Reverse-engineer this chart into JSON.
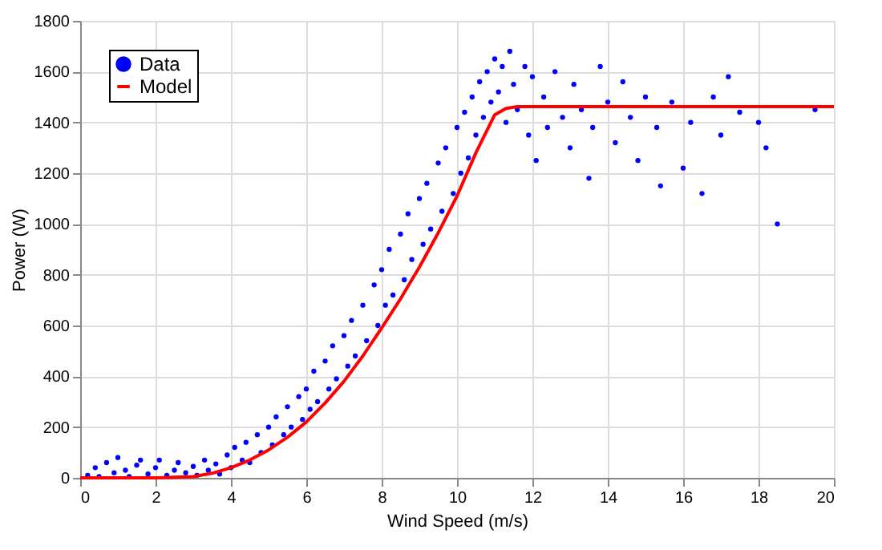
{
  "chart_data": {
    "type": "scatter",
    "xlabel": "Wind Speed (m/s)",
    "ylabel": "Power (W)",
    "xlim": [
      0,
      20
    ],
    "xticks": [
      0,
      2,
      4,
      6,
      8,
      10,
      12,
      14,
      16,
      18,
      20
    ],
    "ylim": [
      0,
      1800
    ],
    "yticks": [
      0,
      200,
      400,
      600,
      800,
      1000,
      1200,
      1400,
      1600,
      1800
    ],
    "grid": true,
    "legend": "top left",
    "series": [
      {
        "name": "Data",
        "marker": "circle",
        "color": "#0000ff",
        "x": [
          0.2,
          0.4,
          0.5,
          0.7,
          0.9,
          1.0,
          1.2,
          1.3,
          1.5,
          1.6,
          1.8,
          2.0,
          2.1,
          2.3,
          2.5,
          2.6,
          2.8,
          3.0,
          3.1,
          3.3,
          3.4,
          3.6,
          3.7,
          3.9,
          4.0,
          4.1,
          4.3,
          4.4,
          4.5,
          4.7,
          4.8,
          5.0,
          5.1,
          5.2,
          5.4,
          5.5,
          5.6,
          5.8,
          5.9,
          6.0,
          6.1,
          6.2,
          6.3,
          6.5,
          6.6,
          6.7,
          6.8,
          7.0,
          7.1,
          7.2,
          7.3,
          7.5,
          7.6,
          7.8,
          7.9,
          8.0,
          8.1,
          8.2,
          8.3,
          8.5,
          8.6,
          8.7,
          8.8,
          9.0,
          9.1,
          9.2,
          9.3,
          9.5,
          9.6,
          9.7,
          9.9,
          10.0,
          10.1,
          10.2,
          10.3,
          10.4,
          10.5,
          10.6,
          10.7,
          10.8,
          10.9,
          11.0,
          11.1,
          11.2,
          11.3,
          11.4,
          11.5,
          11.6,
          11.8,
          11.9,
          12.0,
          12.1,
          12.3,
          12.4,
          12.6,
          12.8,
          13.0,
          13.1,
          13.3,
          13.5,
          13.6,
          13.8,
          14.0,
          14.2,
          14.4,
          14.6,
          14.8,
          15.0,
          15.3,
          15.4,
          15.7,
          16.0,
          16.2,
          16.5,
          16.8,
          17.0,
          17.2,
          17.5,
          18.0,
          18.2,
          18.5,
          19.5
        ],
        "values": [
          10,
          40,
          5,
          60,
          20,
          80,
          30,
          5,
          50,
          70,
          15,
          40,
          70,
          10,
          30,
          60,
          20,
          45,
          10,
          70,
          30,
          55,
          15,
          90,
          40,
          120,
          70,
          140,
          60,
          170,
          100,
          200,
          130,
          240,
          170,
          280,
          200,
          320,
          230,
          350,
          270,
          420,
          300,
          460,
          350,
          520,
          390,
          560,
          440,
          620,
          480,
          680,
          540,
          760,
          600,
          820,
          680,
          900,
          720,
          960,
          780,
          1040,
          860,
          1100,
          920,
          1160,
          980,
          1240,
          1050,
          1300,
          1120,
          1380,
          1200,
          1440,
          1260,
          1500,
          1350,
          1560,
          1420,
          1600,
          1480,
          1650,
          1520,
          1620,
          1400,
          1680,
          1550,
          1450,
          1620,
          1350,
          1580,
          1250,
          1500,
          1380,
          1600,
          1420,
          1300,
          1550,
          1450,
          1180,
          1380,
          1620,
          1480,
          1320,
          1560,
          1420,
          1250,
          1500,
          1380,
          1150,
          1480,
          1220,
          1400,
          1120,
          1500,
          1350,
          1580,
          1440,
          1400,
          1300,
          1000,
          1450
        ]
      },
      {
        "name": "Model",
        "type": "line",
        "line_style": "solid",
        "color": "#ff0000",
        "x": [
          0,
          1,
          2,
          3,
          3.5,
          4,
          4.5,
          5,
          5.5,
          6,
          6.5,
          7,
          7.5,
          8,
          8.5,
          9,
          9.5,
          10,
          10.5,
          11,
          11.3,
          11.6,
          12,
          14,
          16,
          18,
          20
        ],
        "values": [
          0,
          0,
          0,
          5,
          18,
          40,
          70,
          110,
          160,
          220,
          295,
          380,
          480,
          590,
          705,
          830,
          965,
          1110,
          1280,
          1430,
          1455,
          1462,
          1462,
          1462,
          1462,
          1462,
          1462
        ]
      }
    ]
  }
}
